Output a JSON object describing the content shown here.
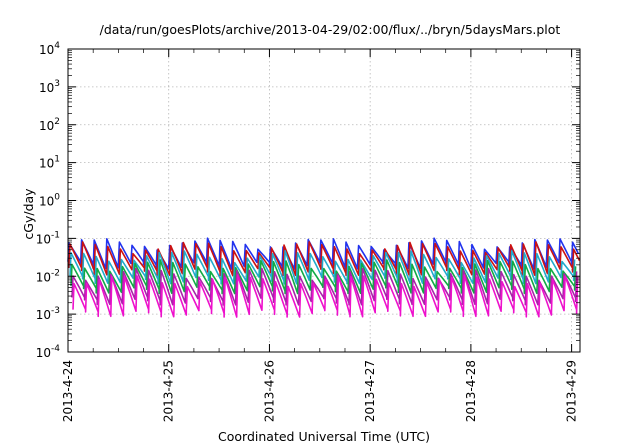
{
  "chart_data": {
    "type": "line",
    "title": "/data/run/goesPlots/archive/2013-04-29/02:00/flux/../bryn/5daysMars.plot",
    "xlabel": "Coordinated Universal Time (UTC)",
    "ylabel": "cGy/day",
    "y_scale": "log",
    "ylim": [
      0.0001,
      10000
    ],
    "y_ticks": [
      {
        "base": "10",
        "exp": "-4",
        "value": 0.0001
      },
      {
        "base": "10",
        "exp": "-3",
        "value": 0.001
      },
      {
        "base": "10",
        "exp": "-2",
        "value": 0.01
      },
      {
        "base": "10",
        "exp": "-1",
        "value": 0.1
      },
      {
        "base": "10",
        "exp": "0",
        "value": 1
      },
      {
        "base": "10",
        "exp": "1",
        "value": 10
      },
      {
        "base": "10",
        "exp": "2",
        "value": 100
      },
      {
        "base": "10",
        "exp": "3",
        "value": 1000
      },
      {
        "base": "10",
        "exp": "4",
        "value": 10000
      }
    ],
    "xlim": [
      "2013-04-24",
      "2013-04-29 02:00"
    ],
    "x_ticks": [
      "2013-4-24",
      "2013-4-25",
      "2013-4-26",
      "2013-4-27",
      "2013-4-28",
      "2013-4-29"
    ],
    "grid": true,
    "pulse_period_hours": 3,
    "series": [
      {
        "color": "#2233ee",
        "peak": 0.075,
        "trough": 0.022
      },
      {
        "color": "#cc1111",
        "peak": 0.06,
        "trough": 0.015
      },
      {
        "color": "#22aacc",
        "peak": 0.035,
        "trough": 0.009
      },
      {
        "color": "#11aa44",
        "peak": 0.02,
        "trough": 0.005
      },
      {
        "color": "#aa22aa",
        "peak": 0.012,
        "trough": 0.0025
      },
      {
        "color": "#ee11cc",
        "peak": 0.008,
        "trough": 0.0012
      }
    ]
  }
}
